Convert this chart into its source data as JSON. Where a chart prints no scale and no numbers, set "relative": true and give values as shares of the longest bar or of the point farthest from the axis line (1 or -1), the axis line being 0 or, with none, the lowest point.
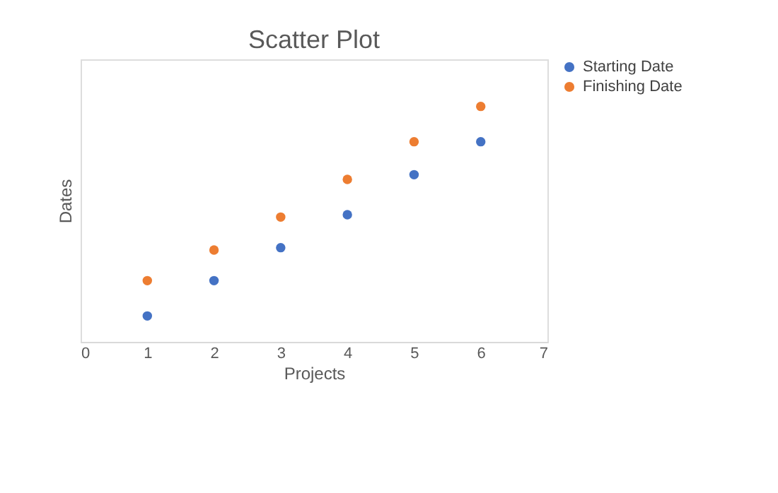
{
  "chart_data": {
    "type": "scatter",
    "title": "Scatter Plot",
    "xlabel": "Projects",
    "ylabel": "Dates",
    "relative": true,
    "x": [
      1,
      2,
      3,
      4,
      5,
      6
    ],
    "xlim": [
      0,
      7
    ],
    "xticks": [
      0,
      1,
      2,
      3,
      4,
      5,
      6,
      7
    ],
    "series": [
      {
        "name": "Starting Date",
        "color": "#4472c4",
        "values": [
          0.11,
          0.26,
          0.4,
          0.54,
          0.71,
          0.85
        ]
      },
      {
        "name": "Finishing Date",
        "color": "#ed7d31",
        "values": [
          0.26,
          0.39,
          0.53,
          0.69,
          0.85,
          1.0
        ]
      }
    ],
    "marker": "circle",
    "grid": false,
    "legend": "right"
  }
}
